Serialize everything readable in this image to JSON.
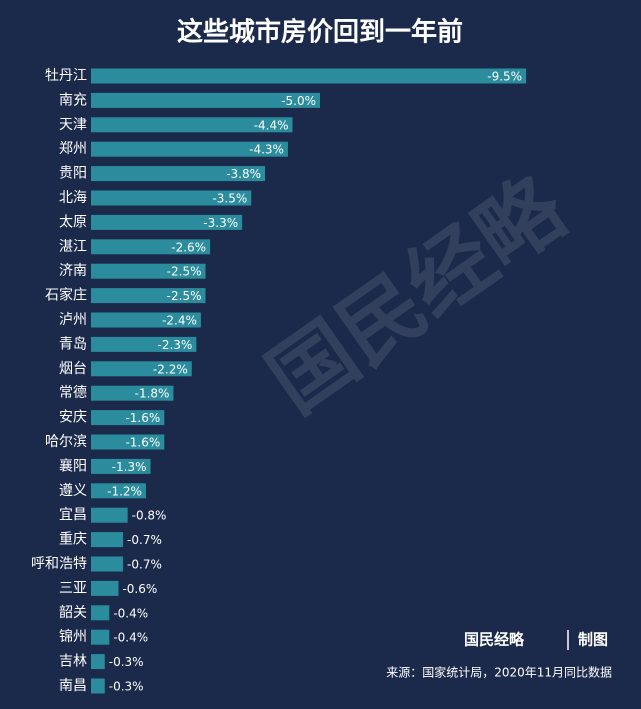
{
  "chart_data": {
    "type": "bar",
    "orientation": "horizontal",
    "title": "这些城市房价回到一年前",
    "categories": [
      "牡丹江",
      "南充",
      "天津",
      "郑州",
      "贵阳",
      "北海",
      "太原",
      "湛江",
      "济南",
      "石家庄",
      "泸州",
      "青岛",
      "烟台",
      "常德",
      "安庆",
      "哈尔滨",
      "襄阳",
      "遵义",
      "宜昌",
      "重庆",
      "呼和浩特",
      "三亚",
      "韶关",
      "锦州",
      "吉林",
      "南昌"
    ],
    "values": [
      -9.5,
      -5.0,
      -4.4,
      -4.3,
      -3.8,
      -3.5,
      -3.3,
      -2.6,
      -2.5,
      -2.5,
      -2.4,
      -2.3,
      -2.2,
      -1.8,
      -1.6,
      -1.6,
      -1.3,
      -1.2,
      -0.8,
      -0.7,
      -0.7,
      -0.6,
      -0.4,
      -0.4,
      -0.3,
      -0.3
    ],
    "value_labels": [
      "-9.5%",
      "-5.0%",
      "-4.4%",
      "-4.3%",
      "-3.8%",
      "-3.5%",
      "-3.3%",
      "-2.6%",
      "-2.5%",
      "-2.5%",
      "-2.4%",
      "-2.3%",
      "-2.2%",
      "-1.8%",
      "-1.6%",
      "-1.6%",
      "-1.3%",
      "-1.2%",
      "-0.8%",
      "-0.7%",
      "-0.7%",
      "-0.6%",
      "-0.4%",
      "-0.4%",
      "-0.3%",
      "-0.3%"
    ],
    "color": "#2a8c9c",
    "xlim": [
      0,
      -10
    ],
    "watermark": "国民经略",
    "brand": "国民经略",
    "brand_note": "制图",
    "source": "来源：国家统计局，2020年11月同比数据"
  }
}
